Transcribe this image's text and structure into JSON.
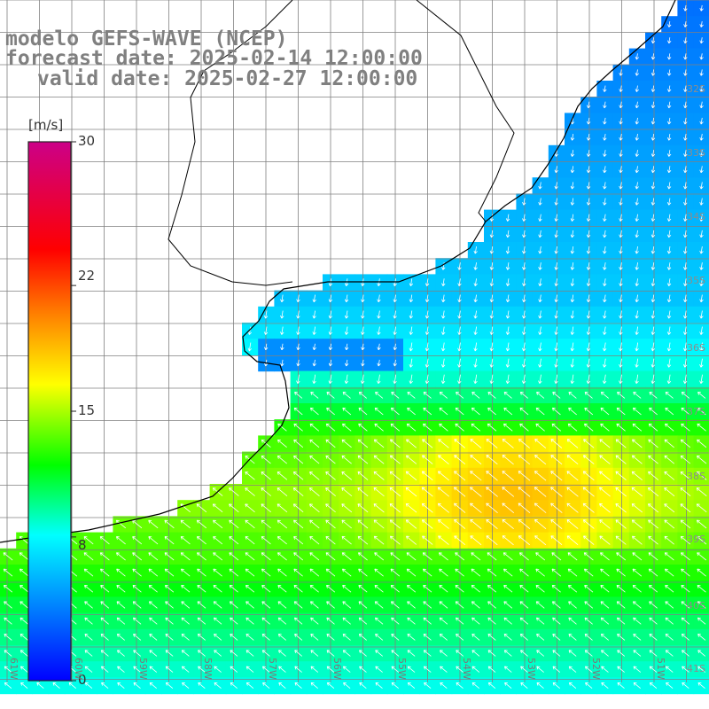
{
  "title": {
    "line1": "modelo GEFS-WAVE (NCEP)",
    "line2": "forecast date: 2025-02-14 12:00:00",
    "line3": "valid date: 2025-02-27 12:00:00"
  },
  "colorbar": {
    "unit": "[m/s]",
    "min": 0,
    "max": 30,
    "ticks": [
      "30",
      "22",
      "15",
      "8",
      "0"
    ],
    "tick_values": [
      30,
      22,
      15,
      8,
      0
    ],
    "colors": [
      "#0000ff",
      "#00ffff",
      "#00ff00",
      "#ffff00",
      "#ff8000",
      "#ff0000",
      "#cc0088"
    ],
    "color_stops": [
      0,
      0.27,
      0.4,
      0.55,
      0.68,
      0.8,
      1.0
    ]
  },
  "map": {
    "lat_labels": [
      "32S",
      "33S",
      "34S",
      "35S",
      "36S",
      "37S",
      "38S",
      "39S",
      "40S",
      "41S"
    ],
    "lon_labels": [
      "61W",
      "60W",
      "59W",
      "58W",
      "57W",
      "56W",
      "55W",
      "54W",
      "53W",
      "52W",
      "51W"
    ],
    "lon_range": [
      -61.5,
      -50.7
    ],
    "lat_range": [
      -31.1,
      -41.4
    ],
    "land_color": "#ffffff",
    "grid_color": "#808080",
    "coast_color": "#000000",
    "arrow_color": "#ffffff"
  }
}
